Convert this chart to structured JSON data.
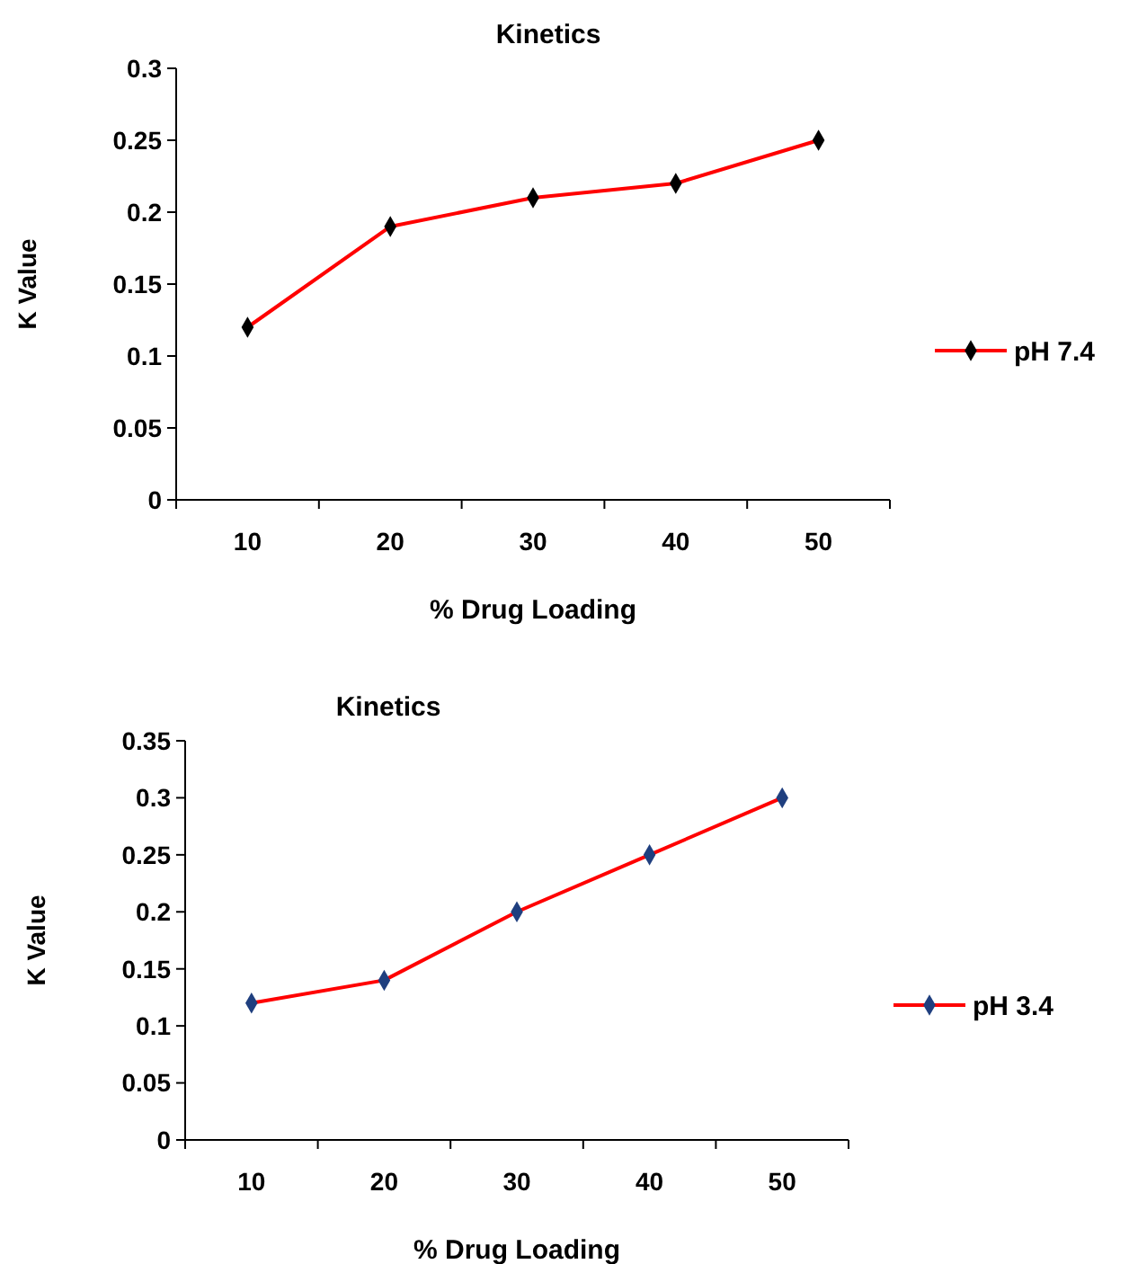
{
  "chart_data": [
    {
      "type": "line",
      "title": "Kinetics",
      "xlabel": "% Drug Loading",
      "ylabel": "K Value",
      "categories": [
        "10",
        "20",
        "30",
        "40",
        "50"
      ],
      "series": [
        {
          "name": "pH 7.4",
          "color": "#ff0000",
          "colors": [
            "#000000",
            "#000000",
            "#000000",
            "#000000",
            "#000000"
          ],
          "values": [
            0.12,
            0.19,
            0.21,
            0.22,
            0.25
          ]
        }
      ],
      "ylim": [
        0,
        0.3
      ],
      "yticks": [
        0,
        0.05,
        0.1,
        0.15,
        0.2,
        0.25,
        0.3
      ],
      "grid": false,
      "legend": "right",
      "marker": "diamond",
      "line_style": "solid"
    },
    {
      "type": "line",
      "title": "Kinetics",
      "xlabel": "% Drug Loading",
      "ylabel": "K Value",
      "categories": [
        "10",
        "20",
        "30",
        "40",
        "50"
      ],
      "series": [
        {
          "name": "pH 3.4",
          "color": "#ff0000",
          "colors": [
            "#1f3f7f",
            "#1f3f7f",
            "#1f3f7f",
            "#1f3f7f",
            "#1f3f7f"
          ],
          "values": [
            0.12,
            0.14,
            0.2,
            0.25,
            0.3
          ]
        }
      ],
      "ylim": [
        0,
        0.35
      ],
      "yticks": [
        0,
        0.05,
        0.1,
        0.15,
        0.2,
        0.25,
        0.3,
        0.35
      ],
      "grid": false,
      "legend": "right",
      "marker": "diamond",
      "line_style": "solid"
    }
  ]
}
